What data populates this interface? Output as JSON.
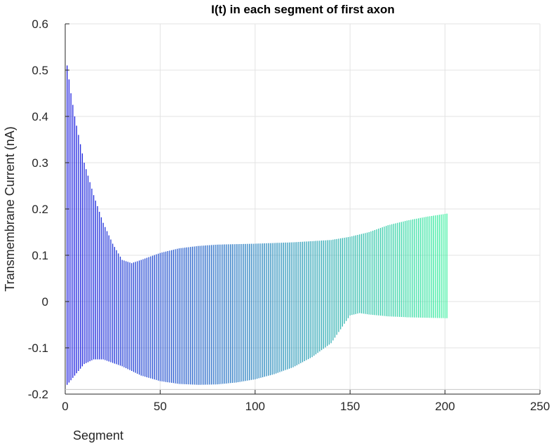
{
  "chart_data": {
    "type": "bar",
    "title": "I(t) in each segment of first axon",
    "xlabel": "Segment",
    "ylabel": "Transmembrane Current (nA)",
    "xlim": [
      0,
      250
    ],
    "ylim": [
      -0.2,
      0.6
    ],
    "x_ticks": [
      "0",
      "50",
      "100",
      "150",
      "200",
      "250"
    ],
    "y_ticks": [
      "-0.2",
      "-0.1",
      "0",
      "0.1",
      "0.2",
      "0.3",
      "0.4",
      "0.5",
      "0.6"
    ],
    "grid": true,
    "legend": "none",
    "segment_count": 201,
    "colormap": {
      "start": "#1c1ce0",
      "end": "#3cf0a0"
    },
    "upper_envelope": [
      [
        1,
        0.51
      ],
      [
        3,
        0.45
      ],
      [
        5,
        0.4
      ],
      [
        8,
        0.34
      ],
      [
        10,
        0.3
      ],
      [
        15,
        0.23
      ],
      [
        20,
        0.17
      ],
      [
        25,
        0.125
      ],
      [
        30,
        0.09
      ],
      [
        35,
        0.083
      ],
      [
        40,
        0.09
      ],
      [
        50,
        0.105
      ],
      [
        60,
        0.115
      ],
      [
        70,
        0.12
      ],
      [
        80,
        0.123
      ],
      [
        100,
        0.125
      ],
      [
        120,
        0.128
      ],
      [
        140,
        0.133
      ],
      [
        150,
        0.14
      ],
      [
        160,
        0.15
      ],
      [
        170,
        0.165
      ],
      [
        180,
        0.175
      ],
      [
        190,
        0.183
      ],
      [
        201,
        0.19
      ]
    ],
    "lower_envelope": [
      [
        1,
        -0.18
      ],
      [
        5,
        -0.16
      ],
      [
        10,
        -0.135
      ],
      [
        15,
        -0.125
      ],
      [
        20,
        -0.125
      ],
      [
        30,
        -0.14
      ],
      [
        40,
        -0.16
      ],
      [
        50,
        -0.172
      ],
      [
        60,
        -0.178
      ],
      [
        70,
        -0.18
      ],
      [
        80,
        -0.179
      ],
      [
        90,
        -0.175
      ],
      [
        100,
        -0.168
      ],
      [
        110,
        -0.157
      ],
      [
        120,
        -0.142
      ],
      [
        130,
        -0.12
      ],
      [
        140,
        -0.09
      ],
      [
        150,
        -0.03
      ],
      [
        155,
        -0.025
      ],
      [
        160,
        -0.028
      ],
      [
        170,
        -0.032
      ],
      [
        180,
        -0.034
      ],
      [
        201,
        -0.036
      ]
    ]
  }
}
